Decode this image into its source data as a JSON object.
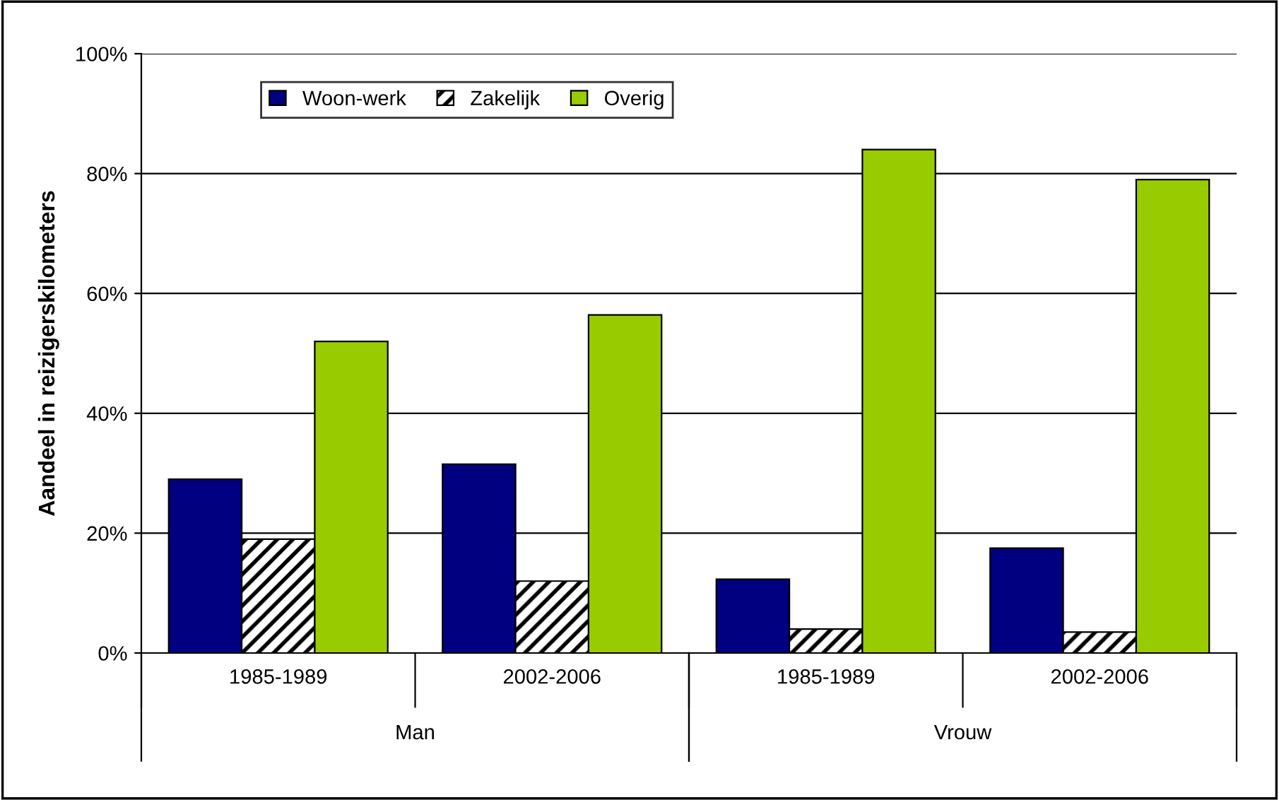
{
  "chart_data": {
    "type": "bar",
    "ylabel": "Aandeel in reizigerskilometers",
    "categories": [
      "1985-1989",
      "2002-2006",
      "1985-1989",
      "2002-2006"
    ],
    "series": [
      {
        "name": "Woon-werk",
        "color": "#000080",
        "values": [
          29,
          31.5,
          12.3,
          17.5
        ]
      },
      {
        "name": "Zakelijk",
        "color": "#000000",
        "values": [
          19,
          12,
          4,
          3.5
        ]
      },
      {
        "name": "Overig",
        "color": "#99cc00",
        "values": [
          52,
          56.4,
          84,
          79
        ]
      }
    ],
    "annotations": [
      "Man",
      "Vrouw"
    ],
    "ylim": [
      0,
      100
    ],
    "yticks": [
      {
        "value": 0,
        "label": "0%"
      },
      {
        "value": 20,
        "label": "20%"
      },
      {
        "value": 40,
        "label": "40%"
      },
      {
        "value": 60,
        "label": "60%"
      },
      {
        "value": 80,
        "label": "80%"
      },
      {
        "value": 100,
        "label": "100%"
      }
    ],
    "grid": "y",
    "legend": "top left"
  }
}
